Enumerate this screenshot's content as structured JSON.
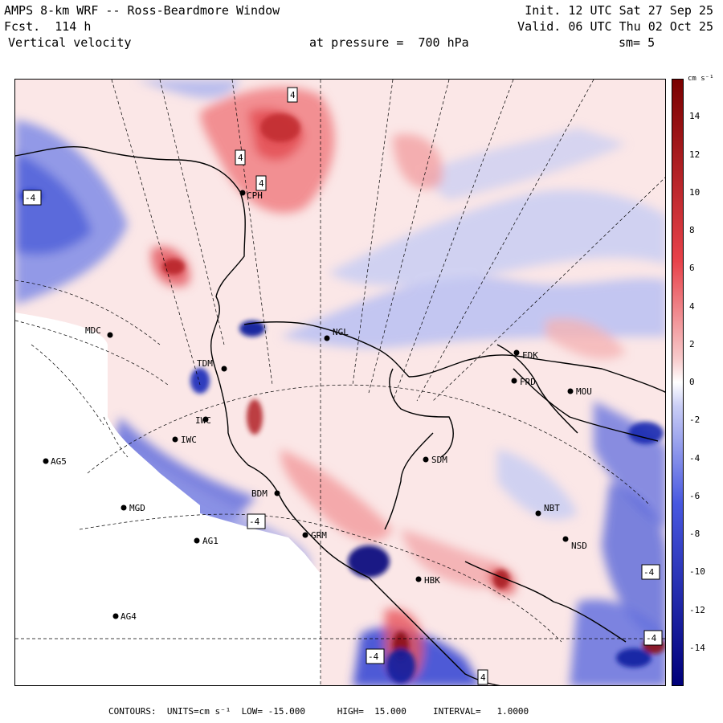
{
  "header": {
    "title": "AMPS 8-km WRF -- Ross-Beardmore Window",
    "forecast": "Fcst.  114 h",
    "variable": "Vertical velocity",
    "init": "Init. 12 UTC Sat 27 Sep 25",
    "valid": "Valid. 06 UTC Thu 02 Oct 25",
    "pressure": "at pressure =  700 hPa",
    "smoothing": "sm= 5"
  },
  "colorbar": {
    "units": "cm s⁻¹",
    "ticks": [
      "14",
      "12",
      "10",
      "8",
      "6",
      "4",
      "2",
      "0",
      "-2",
      "-4",
      "-6",
      "-8",
      "-10",
      "-12",
      "-14"
    ],
    "colors": {
      "high": "#7a0000",
      "positive": "#e8424a",
      "zero": "#ffffff",
      "negative": "#4858e0",
      "low": "#00007a"
    }
  },
  "stations": [
    {
      "id": "CPH",
      "label": "CPH"
    },
    {
      "id": "MDC",
      "label": "MDC"
    },
    {
      "id": "NGL",
      "label": "NGL"
    },
    {
      "id": "FDK",
      "label": "FDK"
    },
    {
      "id": "FRD",
      "label": "FRD"
    },
    {
      "id": "MOU",
      "label": "MOU"
    },
    {
      "id": "TDM",
      "label": "TDM"
    },
    {
      "id": "IWC",
      "label": "IWC"
    },
    {
      "id": "IWC2",
      "label": "IWC"
    },
    {
      "id": "AG5",
      "label": "AG5"
    },
    {
      "id": "SDM",
      "label": "SDM"
    },
    {
      "id": "BDM",
      "label": "BDM"
    },
    {
      "id": "MGD",
      "label": "MGD"
    },
    {
      "id": "NBT",
      "label": "NBT"
    },
    {
      "id": "GRM",
      "label": "GRM"
    },
    {
      "id": "AG1",
      "label": "AG1"
    },
    {
      "id": "NSD",
      "label": "NSD"
    },
    {
      "id": "HBK",
      "label": "HBK"
    },
    {
      "id": "AG4",
      "label": "AG4"
    }
  ],
  "extrema_labels": [
    "4",
    "4",
    "4",
    "-4",
    "-4",
    "-4",
    "-4",
    "-4",
    "4"
  ],
  "footer": {
    "contours": "CONTOURS:  UNITS=cm s⁻¹  LOW= -15.000      HIGH=  15.000     INTERVAL=   1.0000"
  }
}
